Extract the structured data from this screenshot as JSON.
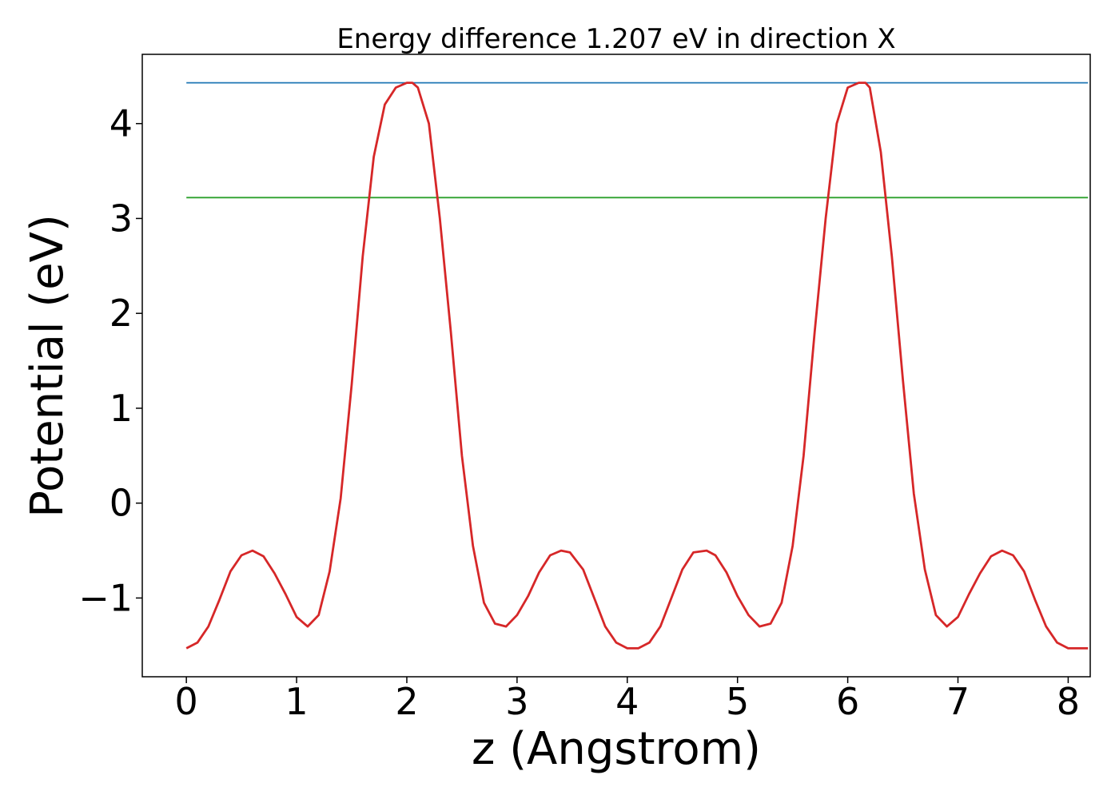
{
  "chart_data": {
    "type": "line",
    "title": "Energy difference 1.207 eV in direction X",
    "xlabel": "z (Angstrom)",
    "ylabel": "Potential (eV)",
    "xlim": [
      -0.4,
      8.2
    ],
    "ylim": [
      -1.83,
      4.73
    ],
    "xticks": [
      0,
      1,
      2,
      3,
      4,
      5,
      6,
      7,
      8
    ],
    "xtick_labels": [
      "0",
      "1",
      "2",
      "3",
      "4",
      "5",
      "6",
      "7",
      "8"
    ],
    "yticks": [
      -1,
      0,
      1,
      2,
      3,
      4
    ],
    "ytick_labels": [
      "−1",
      "0",
      "1",
      "2",
      "3",
      "4"
    ],
    "grid": false,
    "series": [
      {
        "color": "#d62728",
        "x": [
          0.0,
          0.1,
          0.2,
          0.3,
          0.4,
          0.5,
          0.6,
          0.7,
          0.8,
          0.9,
          1.0,
          1.1,
          1.2,
          1.3,
          1.4,
          1.5,
          1.6,
          1.7,
          1.8,
          1.9,
          2.0,
          2.05,
          2.1,
          2.2,
          2.3,
          2.4,
          2.5,
          2.6,
          2.7,
          2.8,
          2.9,
          3.0,
          3.1,
          3.2,
          3.3,
          3.4,
          3.48,
          3.6,
          3.7,
          3.8,
          3.9,
          4.0,
          4.1,
          4.2,
          4.3,
          4.4,
          4.5,
          4.6,
          4.72,
          4.8,
          4.9,
          5.0,
          5.1,
          5.2,
          5.3,
          5.4,
          5.5,
          5.6,
          5.7,
          5.8,
          5.9,
          6.0,
          6.1,
          6.16,
          6.2,
          6.3,
          6.4,
          6.5,
          6.6,
          6.7,
          6.8,
          6.9,
          7.0,
          7.1,
          7.2,
          7.3,
          7.4,
          7.5,
          7.6,
          7.7,
          7.8,
          7.9,
          8.0,
          8.1,
          8.18
        ],
        "y": [
          -1.53,
          -1.47,
          -1.3,
          -1.02,
          -0.72,
          -0.55,
          -0.5,
          -0.56,
          -0.74,
          -0.96,
          -1.2,
          -1.3,
          -1.18,
          -0.72,
          0.05,
          1.25,
          2.6,
          3.65,
          4.2,
          4.38,
          4.43,
          4.43,
          4.38,
          4.0,
          3.0,
          1.8,
          0.5,
          -0.45,
          -1.05,
          -1.27,
          -1.3,
          -1.18,
          -0.98,
          -0.73,
          -0.55,
          -0.5,
          -0.52,
          -0.7,
          -1.0,
          -1.3,
          -1.47,
          -1.53,
          -1.53,
          -1.47,
          -1.3,
          -1.0,
          -0.7,
          -0.52,
          -0.5,
          -0.55,
          -0.73,
          -0.98,
          -1.18,
          -1.3,
          -1.27,
          -1.05,
          -0.45,
          0.5,
          1.8,
          3.0,
          4.0,
          4.38,
          4.43,
          4.43,
          4.38,
          3.7,
          2.6,
          1.3,
          0.1,
          -0.7,
          -1.18,
          -1.3,
          -1.2,
          -0.96,
          -0.74,
          -0.56,
          -0.5,
          -0.55,
          -0.72,
          -1.02,
          -1.3,
          -1.47,
          -1.53,
          -1.53,
          -1.53
        ]
      },
      {
        "color": "#1f77b4",
        "x": [
          0.0,
          8.18
        ],
        "y": [
          4.43,
          4.43
        ]
      },
      {
        "color": "#2ca02c",
        "x": [
          0.0,
          8.18
        ],
        "y": [
          3.22,
          3.22
        ]
      }
    ]
  }
}
